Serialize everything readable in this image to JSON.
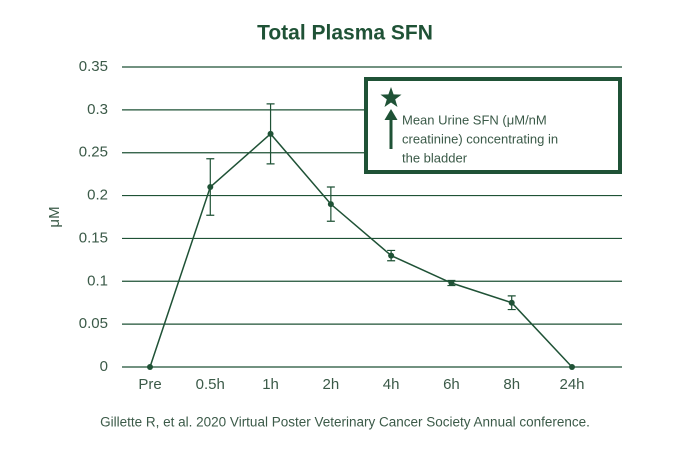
{
  "chart_data": {
    "type": "line",
    "title": "Total Plasma SFN",
    "y_label": "μM",
    "categories": [
      "Pre",
      "0.5h",
      "1h",
      "2h",
      "4h",
      "6h",
      "8h",
      "24h"
    ],
    "values": [
      0,
      0.21,
      0.272,
      0.19,
      0.13,
      0.098,
      0.075,
      0
    ],
    "errors": [
      null,
      0.033,
      0.035,
      0.02,
      0.006,
      0.003,
      0.008,
      null
    ],
    "color": "#1f5236",
    "ylim": [
      0,
      0.35
    ],
    "yticks": [
      0,
      0.05,
      0.1,
      0.15,
      0.2,
      0.25,
      0.3,
      0.35
    ],
    "grid": true,
    "legend_text": [
      "Mean Urine SFN (μM/nM",
      "creatinine) concentrating in",
      "the bladder"
    ],
    "footnote": "Gillette R, et al. 2020 Virtual Poster Veterinary Cancer Society Annual conference."
  }
}
